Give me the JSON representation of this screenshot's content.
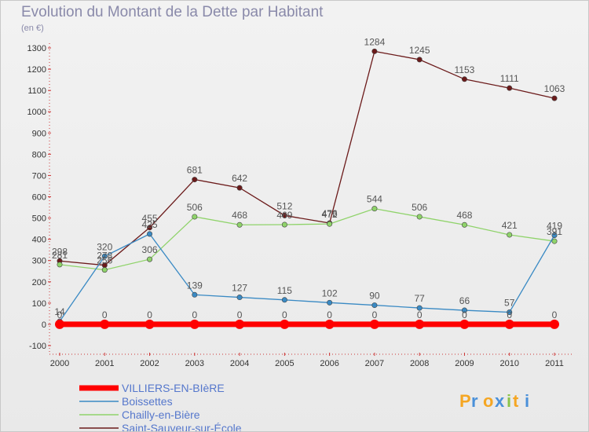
{
  "title": "Evolution du Montant de la Dette par Habitant",
  "subtitle": "(en €)",
  "logo_text": "Proxiti",
  "chart_data": {
    "type": "line",
    "title": "Evolution du Montant de la Dette par Habitant",
    "subtitle": "(en €)",
    "x": [
      "2000",
      "2001",
      "2002",
      "2003",
      "2004",
      "2005",
      "2006",
      "2007",
      "2008",
      "2009",
      "2010",
      "2011"
    ],
    "ylim": [
      -100,
      1300
    ],
    "yticks": [
      -100,
      0,
      100,
      200,
      300,
      400,
      500,
      600,
      700,
      800,
      900,
      1000,
      1100,
      1200,
      1300
    ],
    "grid": false,
    "legend_position": "bottom-left",
    "series": [
      {
        "name": "VILLIERS-EN-BIèRE",
        "color": "#ff0000",
        "values": [
          0,
          0,
          0,
          0,
          0,
          0,
          0,
          0,
          0,
          0,
          0,
          0
        ]
      },
      {
        "name": "Boissettes",
        "color": "#3a8ac4",
        "values": [
          14,
          320,
          425,
          139,
          127,
          115,
          102,
          90,
          77,
          66,
          57,
          419
        ]
      },
      {
        "name": "Chailly-en-Bière",
        "color": "#8fd36a",
        "values": [
          281,
          256,
          306,
          506,
          468,
          469,
          472,
          544,
          506,
          468,
          421,
          391
        ]
      },
      {
        "name": "Saint-Sauveur-sur-École",
        "color": "#6b1a1a",
        "values": [
          298,
          278,
          455,
          681,
          642,
          512,
          476,
          1284,
          1245,
          1153,
          1111,
          1063
        ]
      }
    ]
  }
}
